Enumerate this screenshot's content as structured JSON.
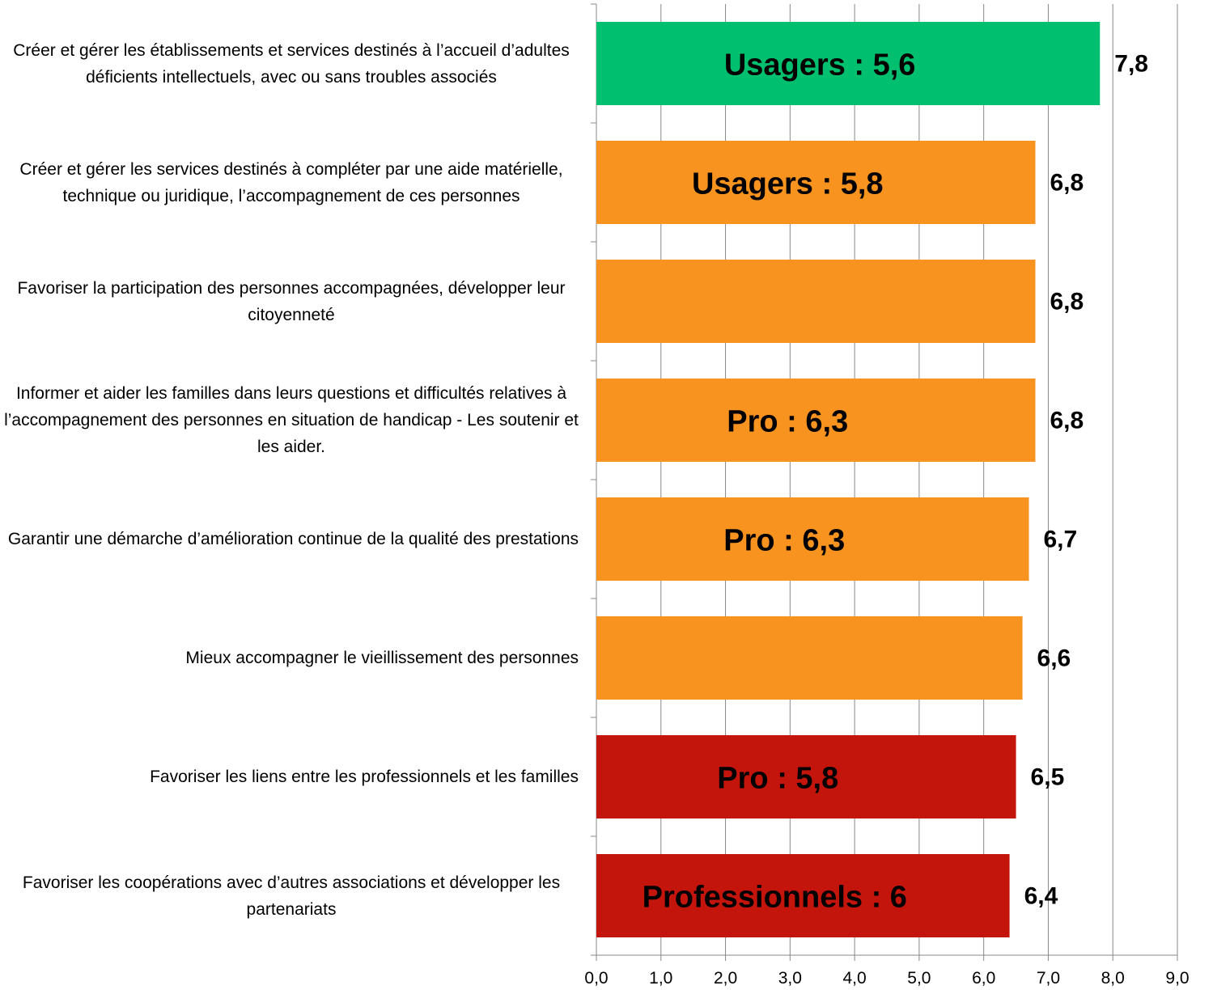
{
  "chart_data": {
    "type": "barh",
    "categories": [
      "Créer et gérer les établissements et services destinés à l’accueil d’adultes déficients intellectuels, avec ou sans troubles associés",
      "Créer et gérer les services destinés à compléter par une aide matérielle, technique ou juridique, l’accompagnement de ces personnes",
      "Favoriser la participation des personnes accompagnées, développer leur citoyenneté",
      "Informer et aider les familles dans leurs questions et difficultés relatives à l’accompagnement des personnes en situation de handicap - Les soutenir et les aider.",
      "Garantir une démarche d’amélioration continue de la qualité des prestations",
      "Mieux accompagner le vieillissement des personnes",
      "Favoriser les liens entre les professionnels et les familles",
      "Favoriser les coopérations avec d’autres associations et développer les partenariats"
    ],
    "values": [
      7.8,
      6.8,
      6.8,
      6.8,
      6.7,
      6.6,
      6.5,
      6.4
    ],
    "value_labels": [
      "7,8",
      "6,8",
      "6,8",
      "6,8",
      "6,7",
      "6,6",
      "6,5",
      "6,4"
    ],
    "colors": [
      "#00bf6f",
      "#f7931e",
      "#f7931e",
      "#f7931e",
      "#f7931e",
      "#f7931e",
      "#c4150c",
      "#c4150c"
    ],
    "annotations": [
      "Usagers : 5,6",
      "Usagers : 5,8",
      null,
      "Pro : 6,3",
      "Pro : 6,3",
      null,
      "Pro : 5,8",
      "Professionnels : 6"
    ],
    "xlim": [
      0,
      9
    ],
    "xticks": [
      {
        "value": 0,
        "label": "0,0"
      },
      {
        "value": 1,
        "label": "1,0"
      },
      {
        "value": 2,
        "label": "2,0"
      },
      {
        "value": 3,
        "label": "3,0"
      },
      {
        "value": 4,
        "label": "4,0"
      },
      {
        "value": 5,
        "label": "5,0"
      },
      {
        "value": 6,
        "label": "6,0"
      },
      {
        "value": 7,
        "label": "7,0"
      },
      {
        "value": 8,
        "label": "8,0"
      },
      {
        "value": 9,
        "label": "9,0"
      }
    ],
    "grid": true
  }
}
